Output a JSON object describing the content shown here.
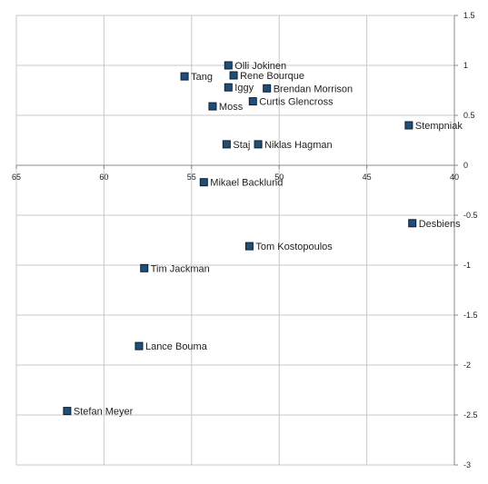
{
  "chart_data": {
    "type": "scatter",
    "title": "",
    "xlabel": "",
    "ylabel": "",
    "x_axis": {
      "min": 40,
      "max": 65,
      "reversed": true,
      "ticks": [
        "65",
        "60",
        "55",
        "50",
        "45",
        "40"
      ],
      "tick_values": [
        65,
        60,
        55,
        50,
        45,
        40
      ]
    },
    "y_axis": {
      "min": -3,
      "max": 1.5,
      "ticks": [
        "1.5",
        "1",
        "0.5",
        "0",
        "-0.5",
        "-1",
        "-1.5",
        "-2",
        "-2.5",
        "-3"
      ],
      "tick_values": [
        1.5,
        1,
        0.5,
        0,
        -0.5,
        -1,
        -1.5,
        -2,
        -2.5,
        -3
      ]
    },
    "grid": true,
    "legend": "none",
    "marker_color": "#1f4e79",
    "marker_stroke": "#0b1f33",
    "grid_color": "#c8c8c8",
    "points": [
      {
        "label": "Olli Jokinen",
        "x": 52.9,
        "y": 1.0
      },
      {
        "label": "Rene Bourque",
        "x": 52.6,
        "y": 0.9
      },
      {
        "label": "Tang",
        "x": 55.4,
        "y": 0.89
      },
      {
        "label": "Iggy",
        "x": 52.9,
        "y": 0.78
      },
      {
        "label": "Brendan Morrison",
        "x": 50.7,
        "y": 0.77
      },
      {
        "label": "Curtis Glencross",
        "x": 51.5,
        "y": 0.64
      },
      {
        "label": "Moss",
        "x": 53.8,
        "y": 0.59
      },
      {
        "label": "Stempniak",
        "x": 42.6,
        "y": 0.4
      },
      {
        "label": "Staj",
        "x": 53.0,
        "y": 0.21
      },
      {
        "label": "Niklas Hagman",
        "x": 51.2,
        "y": 0.21
      },
      {
        "label": "Mikael Backlund",
        "x": 54.3,
        "y": -0.17
      },
      {
        "label": "Desbiens",
        "x": 42.4,
        "y": -0.58
      },
      {
        "label": "Tom Kostopoulos",
        "x": 51.7,
        "y": -0.81
      },
      {
        "label": "Tim Jackman",
        "x": 57.7,
        "y": -1.03
      },
      {
        "label": "Lance Bouma",
        "x": 58.0,
        "y": -1.81
      },
      {
        "label": "Stefan Meyer",
        "x": 62.1,
        "y": -2.46
      }
    ]
  }
}
